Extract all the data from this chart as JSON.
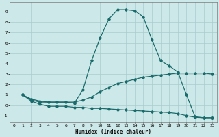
{
  "xlabel": "Humidex (Indice chaleur)",
  "ylabel": "",
  "bg_color": "#cde8e8",
  "grid_color": "#a8cccc",
  "line_color": "#1a6b6b",
  "xlim": [
    -0.5,
    23.5
  ],
  "ylim": [
    -1.6,
    9.9
  ],
  "xticks": [
    0,
    1,
    2,
    3,
    4,
    5,
    6,
    7,
    8,
    9,
    10,
    11,
    12,
    13,
    14,
    15,
    16,
    17,
    18,
    19,
    20,
    21,
    22,
    23
  ],
  "yticks": [
    -1,
    0,
    1,
    2,
    3,
    4,
    5,
    6,
    7,
    8,
    9
  ],
  "line1_x": [
    1,
    2,
    3,
    4,
    5,
    6,
    7,
    8,
    9,
    10,
    11,
    12,
    13,
    14,
    15,
    16,
    17,
    18,
    19,
    20,
    21,
    22,
    23
  ],
  "line1_y": [
    1.0,
    0.5,
    0.3,
    0.3,
    0.3,
    0.3,
    0.2,
    1.5,
    4.3,
    6.5,
    8.3,
    9.2,
    9.2,
    9.1,
    8.5,
    6.3,
    4.3,
    3.8,
    3.2,
    1.0,
    -1.1,
    -1.2,
    -1.2
  ],
  "line2_x": [
    1,
    2,
    3,
    4,
    5,
    6,
    7,
    8,
    9,
    10,
    11,
    12,
    13,
    14,
    15,
    16,
    17,
    18,
    19,
    20,
    21,
    22,
    23
  ],
  "line2_y": [
    1.0,
    0.6,
    0.4,
    0.3,
    0.3,
    0.3,
    0.3,
    0.5,
    0.8,
    1.3,
    1.7,
    2.1,
    2.3,
    2.5,
    2.7,
    2.8,
    2.9,
    3.0,
    3.1,
    3.1,
    3.1,
    3.1,
    3.0
  ],
  "line3_x": [
    1,
    2,
    3,
    4,
    5,
    6,
    7,
    8,
    9,
    10,
    11,
    12,
    13,
    14,
    15,
    16,
    17,
    18,
    19,
    20,
    21,
    22,
    23
  ],
  "line3_y": [
    1.0,
    0.4,
    0.1,
    -0.1,
    -0.1,
    -0.1,
    -0.2,
    -0.2,
    -0.3,
    -0.3,
    -0.35,
    -0.4,
    -0.45,
    -0.5,
    -0.55,
    -0.6,
    -0.65,
    -0.7,
    -0.8,
    -1.0,
    -1.15,
    -1.2,
    -1.2
  ]
}
